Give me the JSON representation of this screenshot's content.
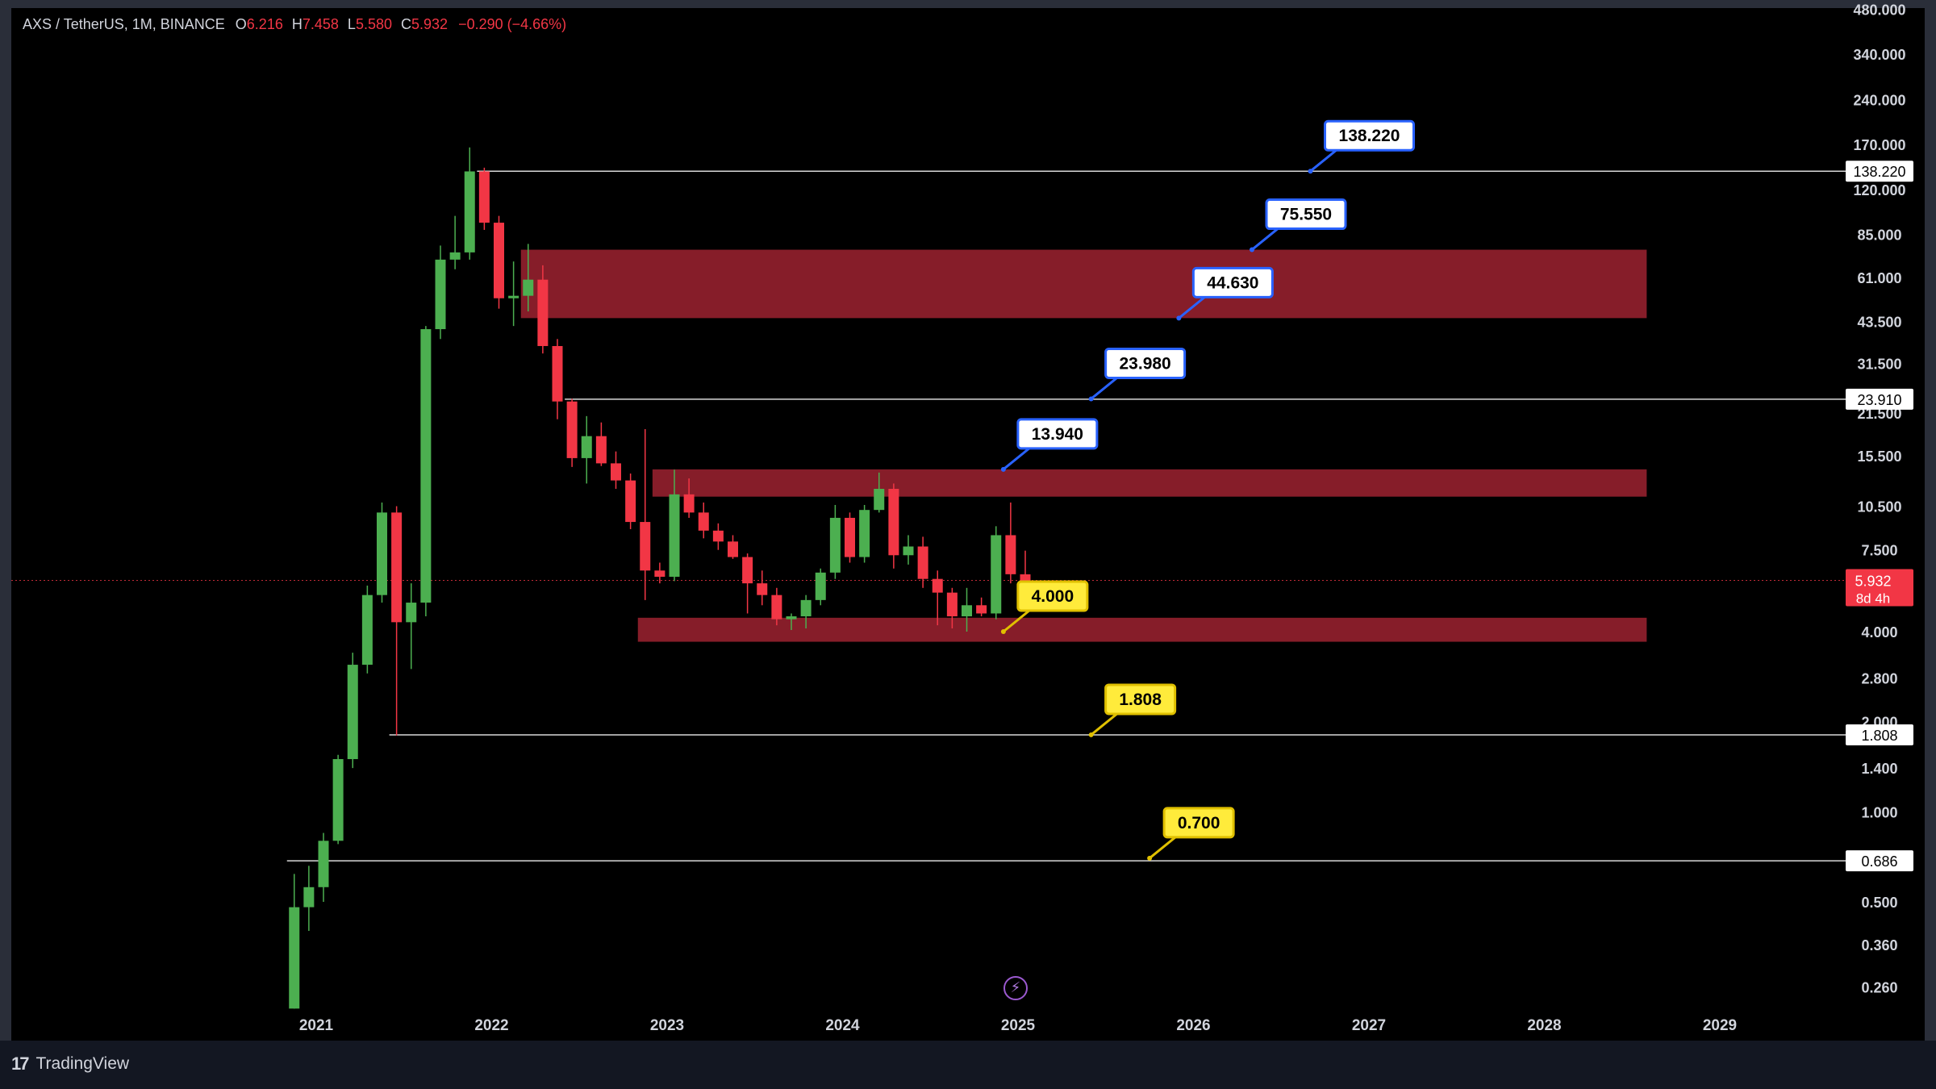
{
  "legend": {
    "symbol": "AXS / TetherUS, 1M, BINANCE",
    "o_label": "O",
    "o": "6.216",
    "h_label": "H",
    "h": "7.458",
    "l_label": "L",
    "l": "5.580",
    "c_label": "C",
    "c": "5.932",
    "change": "−0.290 (−4.66%)"
  },
  "brand": {
    "name": "TradingView",
    "mark": "17"
  },
  "colors": {
    "up": "#4caf50",
    "down": "#f23645",
    "zone": "#8d1f2b",
    "label_blue": "#2962ff",
    "label_yellow": "#ffeb3b",
    "axis_text": "#d1d4dc",
    "price_tag": "#f23645",
    "bolt": "#9b59d0"
  },
  "icons": {
    "bolt": "lightning-icon",
    "logo": "tradingview-logo-icon"
  },
  "chart_data": {
    "type": "candlestick",
    "interval": "1M",
    "y_scale": "log",
    "ylim": [
      0.22,
      480
    ],
    "xlim": [
      "2020-07",
      "2029-08"
    ],
    "y_ticks": [
      "480.000",
      "340.000",
      "240.000",
      "170.000",
      "120.000",
      "85.000",
      "61.000",
      "43.500",
      "31.500",
      "21.500",
      "15.500",
      "10.500",
      "7.500",
      "4.000",
      "2.800",
      "2.000",
      "1.400",
      "1.000",
      "0.500",
      "0.360",
      "0.260"
    ],
    "x_ticks": [
      "2021",
      "2022",
      "2023",
      "2024",
      "2025",
      "2026",
      "2027",
      "2028",
      "2029"
    ],
    "current_price": {
      "value": "5.932",
      "countdown": "8d 4h"
    },
    "horizontal_lines": [
      {
        "value": 138.22,
        "tag": "138.220"
      },
      {
        "value": 23.91,
        "tag": "23.910"
      },
      {
        "value": 1.808,
        "tag": "1.808"
      },
      {
        "value": 0.686,
        "tag": "0.686"
      }
    ],
    "zones": [
      {
        "start": "2022-03",
        "end": "2028-08",
        "low": 44.63,
        "high": 75.55
      },
      {
        "start": "2022-12",
        "end": "2028-08",
        "low": 11.3,
        "high": 13.94
      },
      {
        "start": "2022-11",
        "end": "2028-08",
        "low": 3.7,
        "high": 4.45
      }
    ],
    "targets": [
      {
        "text": "138.220",
        "value": 138.22,
        "date": "2026-09",
        "style": "blue"
      },
      {
        "text": "75.550",
        "value": 75.55,
        "date": "2026-05",
        "style": "blue"
      },
      {
        "text": "44.630",
        "value": 44.63,
        "date": "2025-12",
        "style": "blue"
      },
      {
        "text": "23.980",
        "value": 23.98,
        "date": "2025-06",
        "style": "blue"
      },
      {
        "text": "13.940",
        "value": 13.94,
        "date": "2024-12",
        "style": "blue"
      },
      {
        "text": "4.000",
        "value": 4.0,
        "date": "2024-12",
        "style": "yellow"
      },
      {
        "text": "1.808",
        "value": 1.808,
        "date": "2025-06",
        "style": "yellow"
      },
      {
        "text": "0.700",
        "value": 0.7,
        "date": "2025-10",
        "style": "yellow"
      }
    ],
    "candles": [
      {
        "date": "2020-11",
        "o": 0.22,
        "h": 0.62,
        "l": 0.22,
        "c": 0.48
      },
      {
        "date": "2020-12",
        "o": 0.48,
        "h": 0.66,
        "l": 0.4,
        "c": 0.56
      },
      {
        "date": "2021-01",
        "o": 0.56,
        "h": 0.85,
        "l": 0.5,
        "c": 0.8
      },
      {
        "date": "2021-02",
        "o": 0.8,
        "h": 1.55,
        "l": 0.78,
        "c": 1.5
      },
      {
        "date": "2021-03",
        "o": 1.5,
        "h": 3.4,
        "l": 1.4,
        "c": 3.1
      },
      {
        "date": "2021-04",
        "o": 3.1,
        "h": 5.7,
        "l": 2.9,
        "c": 5.3
      },
      {
        "date": "2021-05",
        "o": 5.3,
        "h": 10.8,
        "l": 5.0,
        "c": 10.0
      },
      {
        "date": "2021-06",
        "o": 10.0,
        "h": 10.5,
        "l": 1.8,
        "c": 4.3
      },
      {
        "date": "2021-07",
        "o": 4.3,
        "h": 5.8,
        "l": 3.0,
        "c": 5.0
      },
      {
        "date": "2021-08",
        "o": 5.0,
        "h": 42.0,
        "l": 4.5,
        "c": 41.0
      },
      {
        "date": "2021-09",
        "o": 41.0,
        "h": 78.0,
        "l": 38.0,
        "c": 70.0
      },
      {
        "date": "2021-10",
        "o": 70.0,
        "h": 98.0,
        "l": 65.0,
        "c": 74.0
      },
      {
        "date": "2021-11",
        "o": 74.0,
        "h": 166.0,
        "l": 70.0,
        "c": 138.0
      },
      {
        "date": "2021-12",
        "o": 138.0,
        "h": 142.0,
        "l": 88.0,
        "c": 93.0
      },
      {
        "date": "2022-01",
        "o": 93.0,
        "h": 98.0,
        "l": 48.0,
        "c": 52.0
      },
      {
        "date": "2022-02",
        "o": 52.0,
        "h": 69.0,
        "l": 42.0,
        "c": 53.0
      },
      {
        "date": "2022-03",
        "o": 53.0,
        "h": 79.0,
        "l": 47.0,
        "c": 60.0
      },
      {
        "date": "2022-04",
        "o": 60.0,
        "h": 67.0,
        "l": 34.0,
        "c": 36.0
      },
      {
        "date": "2022-05",
        "o": 36.0,
        "h": 38.0,
        "l": 20.5,
        "c": 23.5
      },
      {
        "date": "2022-06",
        "o": 23.5,
        "h": 24.0,
        "l": 14.2,
        "c": 15.2
      },
      {
        "date": "2022-07",
        "o": 15.2,
        "h": 21.0,
        "l": 12.5,
        "c": 18.0
      },
      {
        "date": "2022-08",
        "o": 18.0,
        "h": 20.0,
        "l": 14.3,
        "c": 14.6
      },
      {
        "date": "2022-09",
        "o": 14.6,
        "h": 16.0,
        "l": 12.0,
        "c": 12.8
      },
      {
        "date": "2022-10",
        "o": 12.8,
        "h": 13.5,
        "l": 8.8,
        "c": 9.3
      },
      {
        "date": "2022-11",
        "o": 9.3,
        "h": 19.0,
        "l": 5.1,
        "c": 6.4
      },
      {
        "date": "2022-12",
        "o": 6.4,
        "h": 6.8,
        "l": 5.8,
        "c": 6.1
      },
      {
        "date": "2023-01",
        "o": 6.1,
        "h": 13.9,
        "l": 5.9,
        "c": 11.5
      },
      {
        "date": "2023-02",
        "o": 11.5,
        "h": 13.0,
        "l": 9.6,
        "c": 10.0
      },
      {
        "date": "2023-03",
        "o": 10.0,
        "h": 10.8,
        "l": 8.2,
        "c": 8.7
      },
      {
        "date": "2023-04",
        "o": 8.7,
        "h": 9.2,
        "l": 7.5,
        "c": 8.0
      },
      {
        "date": "2023-05",
        "o": 8.0,
        "h": 8.4,
        "l": 7.0,
        "c": 7.1
      },
      {
        "date": "2023-06",
        "o": 7.1,
        "h": 7.3,
        "l": 4.6,
        "c": 5.8
      },
      {
        "date": "2023-07",
        "o": 5.8,
        "h": 6.4,
        "l": 4.9,
        "c": 5.3
      },
      {
        "date": "2023-08",
        "o": 5.3,
        "h": 5.6,
        "l": 4.2,
        "c": 4.4
      },
      {
        "date": "2023-09",
        "o": 4.4,
        "h": 4.6,
        "l": 4.05,
        "c": 4.5
      },
      {
        "date": "2023-10",
        "o": 4.5,
        "h": 5.3,
        "l": 4.1,
        "c": 5.1
      },
      {
        "date": "2023-11",
        "o": 5.1,
        "h": 6.5,
        "l": 4.9,
        "c": 6.3
      },
      {
        "date": "2023-12",
        "o": 6.3,
        "h": 10.6,
        "l": 6.0,
        "c": 9.6
      },
      {
        "date": "2024-01",
        "o": 9.6,
        "h": 10.0,
        "l": 6.8,
        "c": 7.1
      },
      {
        "date": "2024-02",
        "o": 7.1,
        "h": 10.6,
        "l": 6.8,
        "c": 10.2
      },
      {
        "date": "2024-03",
        "o": 10.2,
        "h": 13.6,
        "l": 10.0,
        "c": 12.0
      },
      {
        "date": "2024-04",
        "o": 12.0,
        "h": 12.5,
        "l": 6.5,
        "c": 7.2
      },
      {
        "date": "2024-05",
        "o": 7.2,
        "h": 8.4,
        "l": 6.7,
        "c": 7.7
      },
      {
        "date": "2024-06",
        "o": 7.7,
        "h": 8.3,
        "l": 5.6,
        "c": 6.0
      },
      {
        "date": "2024-07",
        "o": 6.0,
        "h": 6.4,
        "l": 4.2,
        "c": 5.4
      },
      {
        "date": "2024-08",
        "o": 5.4,
        "h": 5.6,
        "l": 4.1,
        "c": 4.5
      },
      {
        "date": "2024-09",
        "o": 4.5,
        "h": 5.6,
        "l": 4.0,
        "c": 4.9
      },
      {
        "date": "2024-10",
        "o": 4.9,
        "h": 5.2,
        "l": 4.5,
        "c": 4.6
      },
      {
        "date": "2024-11",
        "o": 4.6,
        "h": 9.0,
        "l": 4.4,
        "c": 8.4
      },
      {
        "date": "2024-12",
        "o": 8.4,
        "h": 10.8,
        "l": 5.8,
        "c": 6.22
      },
      {
        "date": "2025-01",
        "o": 6.216,
        "h": 7.458,
        "l": 5.58,
        "c": 5.932
      }
    ]
  }
}
